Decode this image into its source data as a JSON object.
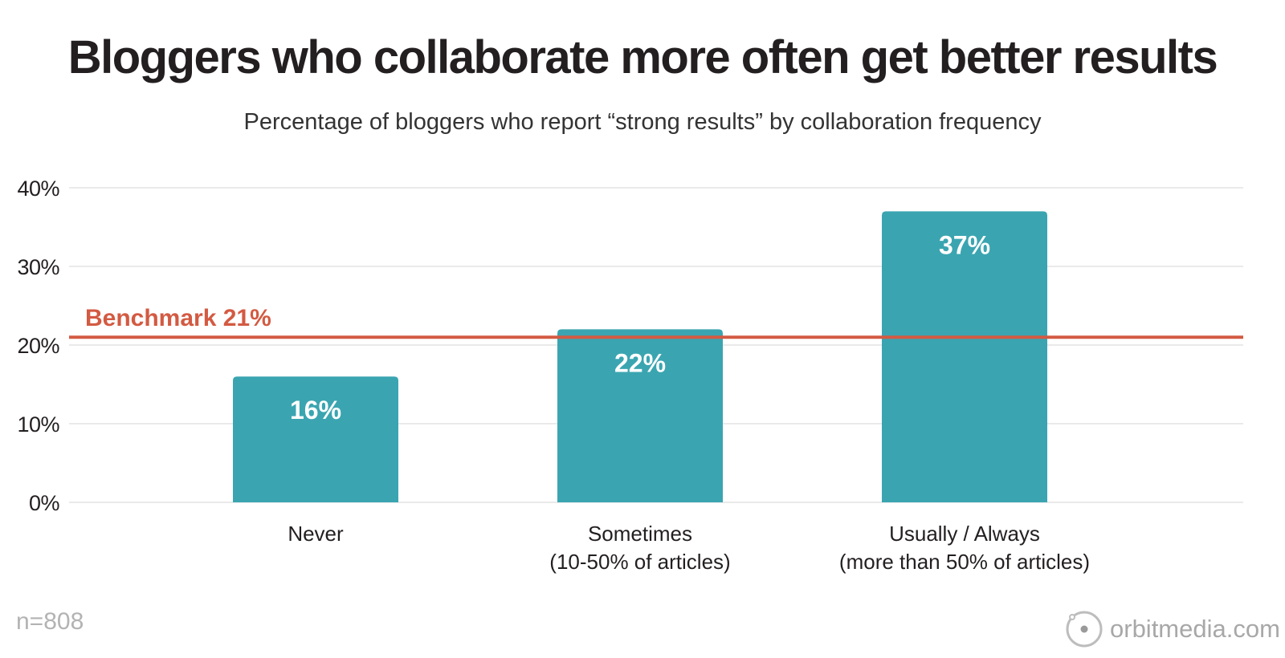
{
  "chart_data": {
    "type": "bar",
    "title": "Bloggers who collaborate more often get better results",
    "subtitle": "Percentage of bloggers who report “strong results” by collaboration frequency",
    "categories": [
      [
        "Never"
      ],
      [
        "Sometimes",
        "(10-50% of articles)"
      ],
      [
        "Usually / Always",
        "(more than 50% of articles)"
      ]
    ],
    "values": [
      16,
      22,
      37
    ],
    "data_labels": [
      "16%",
      "22%",
      "37%"
    ],
    "ylim": [
      0,
      40
    ],
    "yticks": [
      0,
      10,
      20,
      30,
      40
    ],
    "ytick_labels": [
      "0%",
      "10%",
      "20%",
      "30%",
      "40%"
    ],
    "grid": true,
    "reference_line": {
      "value": 21,
      "label": "Benchmark 21%",
      "color": "#d35a42"
    },
    "colors": {
      "bar": "#3aa5b1",
      "data_label": "#ffffff",
      "grid": "#e4e4e4",
      "axis_text": "#231f20"
    }
  },
  "footer": {
    "sample_size": "n=808",
    "brand": "orbitmedia.com",
    "brand_icon": "orbit-logo-icon"
  }
}
